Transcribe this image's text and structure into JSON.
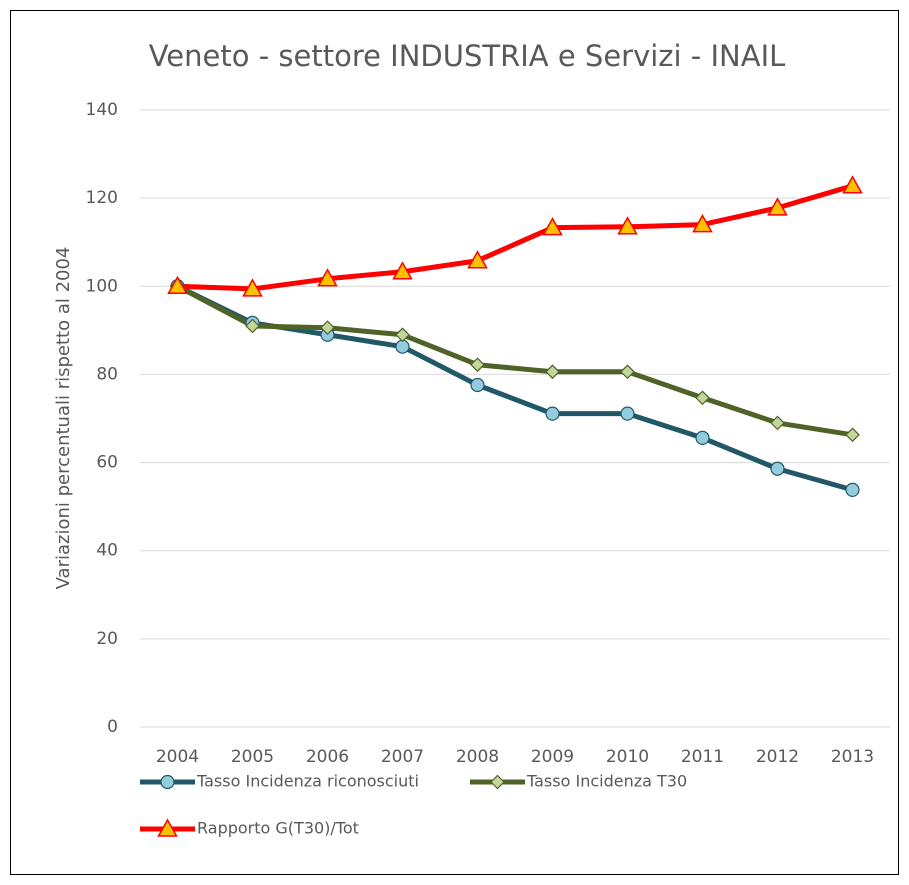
{
  "chart_data": {
    "type": "line",
    "title": "Veneto - settore INDUSTRIA e Servizi - INAIL",
    "y_label": "Variazioni percentuali rispetto al 2004",
    "categories": [
      "2004",
      "2005",
      "2006",
      "2007",
      "2008",
      "2009",
      "2010",
      "2011",
      "2012",
      "2013"
    ],
    "series": [
      {
        "name": "Tasso Incidenza riconosciuti",
        "color": "#215868",
        "marker": "circle",
        "marker_fill": "#93cddd",
        "values": [
          100,
          91.7,
          89,
          86.3,
          77.6,
          71.1,
          71.1,
          65.6,
          58.6,
          53.8
        ]
      },
      {
        "name": "Tasso Incidenza T30",
        "color": "#4f6228",
        "marker": "diamond",
        "marker_fill": "#c3d69b",
        "values": [
          100,
          91,
          90.6,
          89,
          82.2,
          80.6,
          80.6,
          74.7,
          69,
          66.3
        ]
      },
      {
        "name": "Rapporto G(T30)/Tot",
        "color": "#ff0000",
        "marker": "triangle",
        "marker_fill": "#ffc000",
        "values": [
          100,
          99.4,
          101.7,
          103.3,
          105.8,
          113.3,
          113.5,
          114,
          117.8,
          122.8
        ]
      }
    ],
    "ylim": [
      0,
      140
    ],
    "yticks": [
      0,
      20,
      40,
      60,
      80,
      100,
      120,
      140
    ],
    "grid": true,
    "legend": "bottom"
  }
}
